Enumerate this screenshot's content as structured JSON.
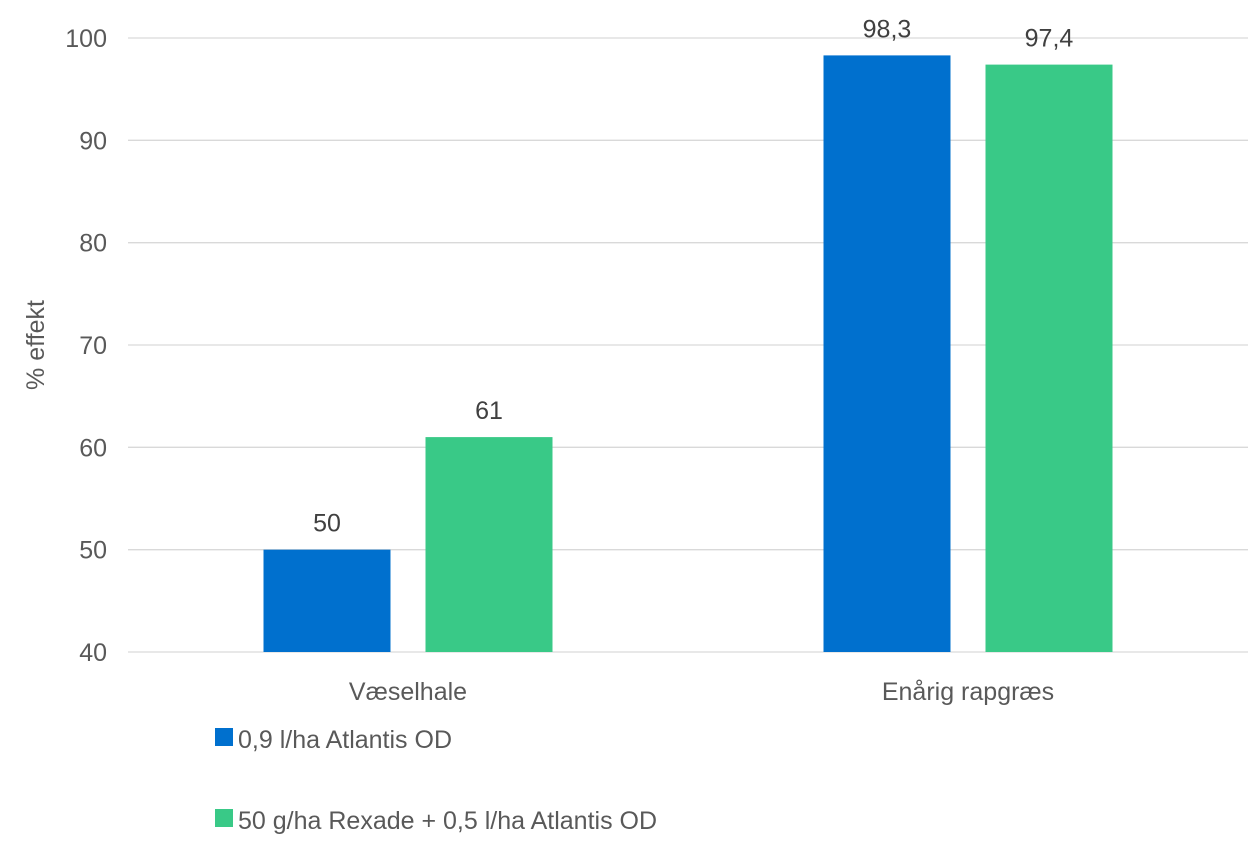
{
  "chart_data": {
    "type": "bar",
    "categories": [
      "Væselhale",
      "Enårig rapgræs"
    ],
    "series": [
      {
        "name": "0,9 l/ha Atlantis OD",
        "color": "#0070CE",
        "values": [
          50,
          98.3
        ],
        "labels": [
          "50",
          "98,3"
        ]
      },
      {
        "name": "50 g/ha Rexade + 0,5 l/ha Atlantis OD",
        "color": "#39C987",
        "values": [
          61,
          97.4
        ],
        "labels": [
          "61",
          "97,4"
        ]
      }
    ],
    "ylabel": "% effekt",
    "ylim": [
      40,
      100
    ],
    "yticks": [
      40,
      50,
      60,
      70,
      80,
      90,
      100
    ],
    "ytick_labels": [
      "40",
      "50",
      "60",
      "70",
      "80",
      "90",
      "100"
    ],
    "grid": true,
    "legend_position": "bottom"
  }
}
